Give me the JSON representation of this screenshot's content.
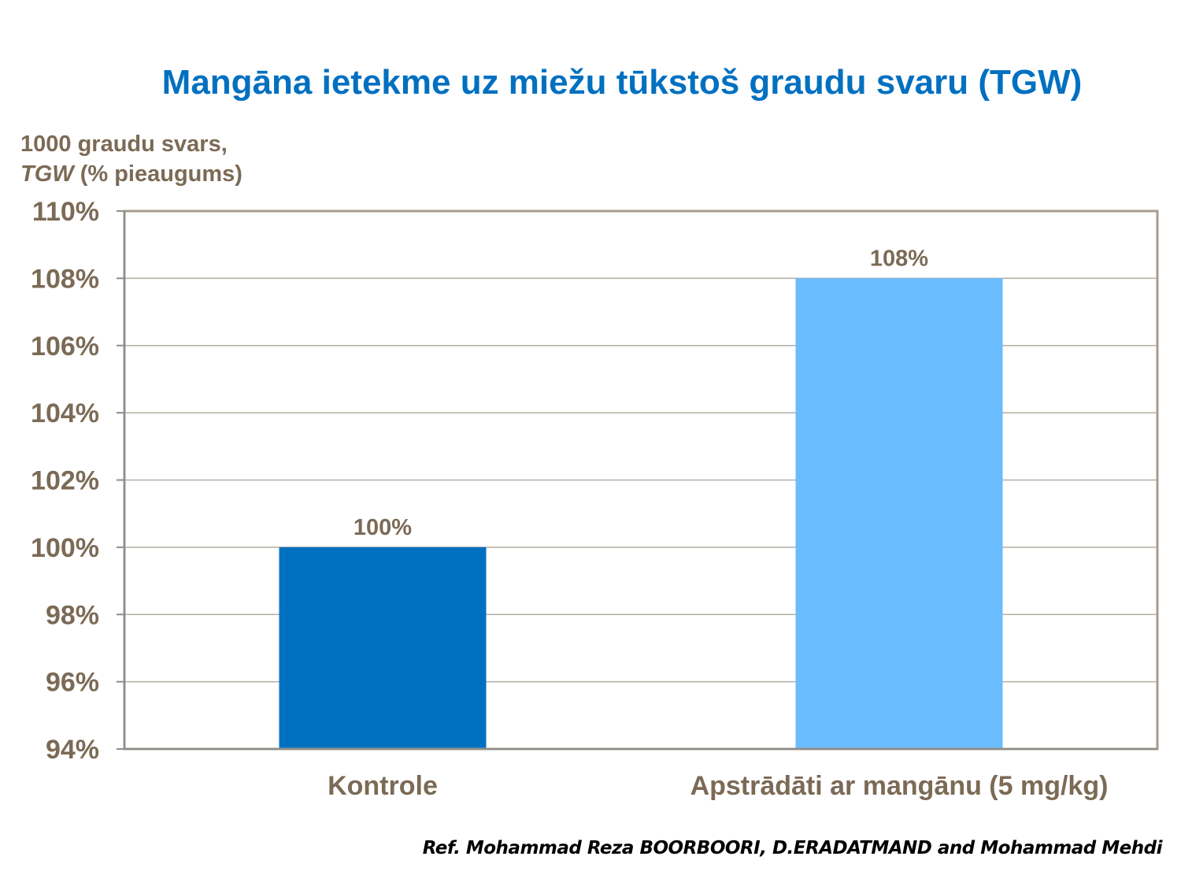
{
  "chart_data": {
    "type": "bar",
    "title": "Mangāna ietekme uz miežu tūkstoš graudu svaru (TGW)",
    "ylabel_line1": "1000 graudu svars,",
    "ylabel_line2_italic": "TGW",
    "ylabel_line2_rest": " (% pieaugums)",
    "xlabel": "",
    "categories": [
      "Kontrole",
      "Apstrādāti ar mangānu (5 mg/kg)"
    ],
    "values": [
      100,
      108
    ],
    "data_labels": [
      "100%",
      "108%"
    ],
    "colors": [
      "#0070C0",
      "#69BDFF"
    ],
    "ylim": [
      94,
      110
    ],
    "yticks": [
      94,
      96,
      98,
      100,
      102,
      104,
      106,
      108,
      110
    ],
    "ytick_labels": [
      "94%",
      "96%",
      "98%",
      "100%",
      "102%",
      "104%",
      "106%",
      "108%",
      "110%"
    ],
    "grid": true,
    "legend": "none"
  },
  "reference": "Ref. Mohammad Reza BOORBOORI, D.ERADATMAND and Mohammad Mehdi"
}
